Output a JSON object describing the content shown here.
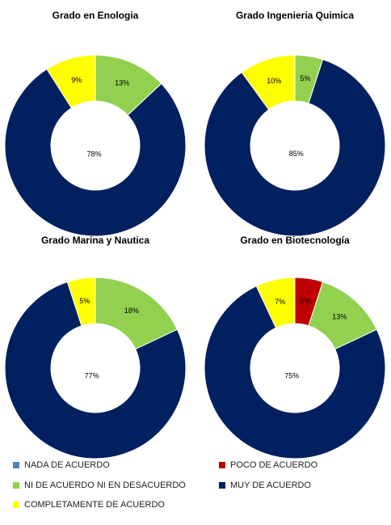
{
  "chart_data": [
    {
      "type": "donut",
      "title": "Grado en Enologia",
      "values": [
        0,
        0,
        13,
        78,
        9
      ],
      "value_labels": [
        null,
        null,
        "13%",
        "78%",
        "9%"
      ]
    },
    {
      "type": "donut",
      "title": "Grado Ingenieria Quimica",
      "values": [
        0,
        0,
        5,
        85,
        10
      ],
      "value_labels": [
        null,
        null,
        "5%",
        "85%",
        "10%"
      ]
    },
    {
      "type": "donut",
      "title": "Grado Marina y Nautica",
      "values": [
        0,
        0,
        18,
        77,
        5
      ],
      "value_labels": [
        null,
        null,
        "18%",
        "77%",
        "5%"
      ]
    },
    {
      "type": "donut",
      "title": "Grado en Biotecnología",
      "values": [
        0,
        5,
        13,
        75,
        7
      ],
      "value_labels": [
        null,
        "5%",
        "13%",
        "75%",
        "7%"
      ]
    }
  ],
  "legend": {
    "labels": [
      "NADA DE ACUERDO",
      "POCO DE ACUERDO",
      "NI DE ACUERDO NI EN DESACUERDO",
      "MUY DE ACUERDO",
      "COMPLETAMENTE DE ACUERDO"
    ],
    "colors": [
      "#4f81bd",
      "#c00000",
      "#92d050",
      "#002060",
      "#ffff00"
    ]
  }
}
